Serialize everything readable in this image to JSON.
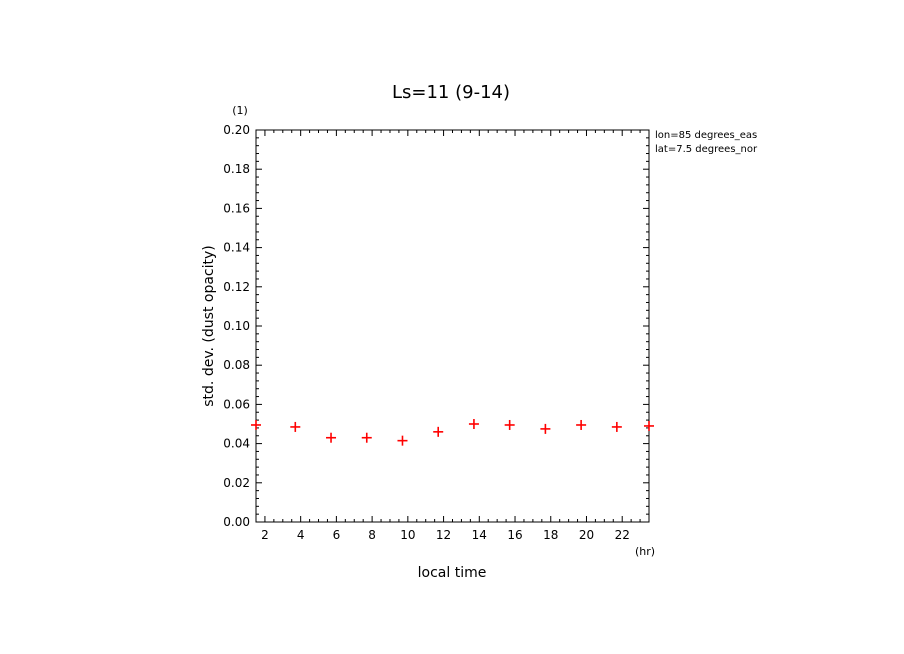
{
  "chart_data": {
    "type": "scatter",
    "title": "Ls=11 (9-14)",
    "xlabel": "local time",
    "xunit": "(hr)",
    "ylabel": "std. dev. (dust opacity)",
    "yunit": "(1)",
    "xlim": [
      1.5,
      23.5
    ],
    "ylim": [
      0.0,
      0.2
    ],
    "xticks": [
      2,
      4,
      6,
      8,
      10,
      12,
      14,
      16,
      18,
      20,
      22
    ],
    "yticks": [
      "0.00",
      "0.02",
      "0.04",
      "0.06",
      "0.08",
      "0.10",
      "0.12",
      "0.14",
      "0.16",
      "0.18",
      "0.20"
    ],
    "grid": false,
    "legend": "none",
    "annotations": [
      "lon=85 degrees_eas",
      "lat=7.5 degrees_nor"
    ],
    "marker_color": "#ff0000",
    "series": [
      {
        "x": [
          1.5,
          3.7,
          5.7,
          7.7,
          9.7,
          11.7,
          13.7,
          15.7,
          17.7,
          19.7,
          21.7,
          23.5
        ],
        "y": [
          0.0495,
          0.0485,
          0.043,
          0.043,
          0.0415,
          0.046,
          0.05,
          0.0495,
          0.0475,
          0.0495,
          0.0485,
          0.049
        ]
      }
    ]
  }
}
